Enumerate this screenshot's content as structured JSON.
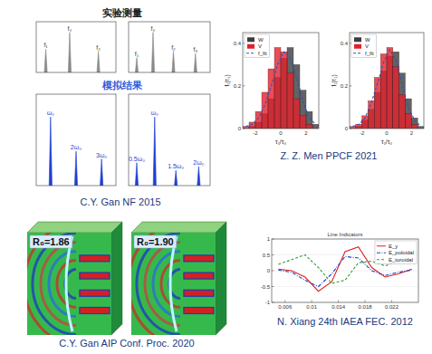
{
  "chart_data": [
    {
      "type": "spectrum",
      "color": "#8a8a8a",
      "xlim": [
        0,
        1
      ],
      "ylim": [
        0,
        1.2
      ],
      "tick_labels": false,
      "peaks_x": [
        0.12,
        0.42,
        0.78
      ],
      "values": [
        0.55,
        0.95,
        0.5
      ],
      "peak_labels": [
        "f₁",
        "f₀",
        "f₂"
      ]
    },
    {
      "type": "spectrum",
      "color": "#8a8a8a",
      "xlim": [
        0,
        1
      ],
      "ylim": [
        0,
        1.2
      ],
      "tick_labels": false,
      "peaks_x": [
        0.1,
        0.3,
        0.55,
        0.82
      ],
      "values": [
        0.35,
        0.95,
        0.5,
        0.45
      ],
      "peak_labels": [
        "f₁",
        "f₀",
        "f₂",
        "f₃"
      ]
    },
    {
      "type": "spectrum",
      "color": "#1f3fd0",
      "xlim": [
        0,
        1
      ],
      "ylim": [
        0,
        1.2
      ],
      "tick_labels": false,
      "peaks_x": [
        0.18,
        0.5,
        0.82
      ],
      "values": [
        0.9,
        0.45,
        0.35
      ],
      "peak_labels": [
        "ω₀",
        "2ω₀",
        "3ω₀"
      ]
    },
    {
      "type": "spectrum",
      "color": "#1f3fd0",
      "xlim": [
        0,
        1
      ],
      "ylim": [
        0,
        1.2
      ],
      "tick_labels": false,
      "peaks_x": [
        0.1,
        0.32,
        0.58,
        0.86
      ],
      "values": [
        0.3,
        0.9,
        0.2,
        0.25
      ],
      "peak_labels": [
        "0.5ω₀",
        "ω₀",
        "1.5ω₀",
        "2ω₀"
      ]
    },
    {
      "type": "histogram",
      "bins": [
        -3,
        -2.5,
        -2,
        -1.5,
        -1,
        -0.5,
        0,
        0.5,
        1,
        1.5,
        2,
        2.5,
        3
      ],
      "series": [
        {
          "name": "W",
          "color": "#3c3c3c",
          "values": [
            0,
            0.01,
            0.03,
            0.07,
            0.14,
            0.24,
            0.33,
            0.38,
            0.3,
            0.18,
            0.08,
            0.02
          ]
        },
        {
          "name": "V",
          "color": "#e3202a",
          "values": [
            0.01,
            0.03,
            0.08,
            0.17,
            0.28,
            0.38,
            0.36,
            0.26,
            0.14,
            0.06,
            0.02,
            0
          ]
        },
        {
          "name": "f_fit",
          "type": "line",
          "line_style": "dashed",
          "color": "#3050c0",
          "values": [
            0.01,
            0.02,
            0.05,
            0.11,
            0.2,
            0.3,
            0.36,
            0.33,
            0.24,
            0.13,
            0.05,
            0.02
          ]
        }
      ],
      "xlim": [
        -3,
        3
      ],
      "xticks": [
        -2,
        0,
        2
      ],
      "ylim": [
        0,
        0.45
      ],
      "yticks": [
        0,
        0.2,
        0.4
      ],
      "x_label": "τ₁/τ₀",
      "y_label": "f₁(τ₁)",
      "legend": "upper-left"
    },
    {
      "type": "histogram",
      "bins": [
        -3,
        -2.5,
        -2,
        -1.5,
        -1,
        -0.5,
        0,
        0.5,
        1,
        1.5,
        2,
        2.5,
        3
      ],
      "series": [
        {
          "name": "W",
          "color": "#3c3c3c",
          "values": [
            0,
            0.01,
            0.04,
            0.09,
            0.17,
            0.27,
            0.34,
            0.36,
            0.26,
            0.14,
            0.05,
            0.01
          ]
        },
        {
          "name": "V",
          "color": "#e3202a",
          "values": [
            0.01,
            0.02,
            0.06,
            0.13,
            0.24,
            0.35,
            0.38,
            0.29,
            0.16,
            0.07,
            0.02,
            0
          ]
        },
        {
          "name": "f_fit",
          "type": "line",
          "line_style": "dashed",
          "color": "#3050c0",
          "values": [
            0.01,
            0.02,
            0.05,
            0.12,
            0.21,
            0.31,
            0.37,
            0.32,
            0.21,
            0.1,
            0.04,
            0.01
          ]
        }
      ],
      "xlim": [
        -3,
        3
      ],
      "xticks": [
        -2,
        0,
        2
      ],
      "ylim": [
        0,
        0.45
      ],
      "yticks": [
        0,
        0.2,
        0.4
      ],
      "x_label": "τ₁/τ₀",
      "y_label": "f₁(τ₁)",
      "legend": "upper-left"
    },
    {
      "type": "line",
      "title": "Line Indicators",
      "x": [
        0.005,
        0.007,
        0.009,
        0.011,
        0.013,
        0.015,
        0.017,
        0.019,
        0.021,
        0.023,
        0.025
      ],
      "series": [
        {
          "name": "E_y",
          "color": "#e02020",
          "line_style": "solid",
          "values": [
            0.05,
            0,
            -0.2,
            -0.65,
            -0.35,
            0.6,
            0.75,
            0.1,
            -0.2,
            -0.1,
            0.05
          ]
        },
        {
          "name": "E_poloidal",
          "color": "#2040c8",
          "line_style": "dashdot",
          "values": [
            0.02,
            -0.05,
            -0.3,
            -0.5,
            -0.1,
            0.45,
            0.4,
            0,
            -0.15,
            -0.05,
            0.02
          ]
        },
        {
          "name": "E_toroidal",
          "color": "#3a9a3a",
          "line_style": "dashed",
          "values": [
            0.2,
            0.35,
            0.5,
            0.1,
            -0.4,
            -0.3,
            0.25,
            0.3,
            0.15,
            0.3,
            0.35
          ]
        }
      ],
      "xlim": [
        0.004,
        0.026
      ],
      "xticks": [
        0.006,
        0.01,
        0.014,
        0.018,
        0.022
      ],
      "ylim": [
        -1,
        1
      ],
      "yticks": [
        -1,
        -0.5,
        0,
        0.5,
        1
      ],
      "legend": "upper-right"
    }
  ],
  "labels": {
    "experiment": "实验测量",
    "simulation": "模拟结果"
  },
  "simulations": [
    {
      "label": "R₀=1.86"
    },
    {
      "label": "R₀=1.90"
    }
  ],
  "captions": [
    "C.Y. Gan NF 2015",
    "Z. Z. Men PPCF 2021",
    "C.Y. Gan AIP Conf. Proc. 2020",
    "N. Xiang 24th IAEA FEC. 2012"
  ]
}
